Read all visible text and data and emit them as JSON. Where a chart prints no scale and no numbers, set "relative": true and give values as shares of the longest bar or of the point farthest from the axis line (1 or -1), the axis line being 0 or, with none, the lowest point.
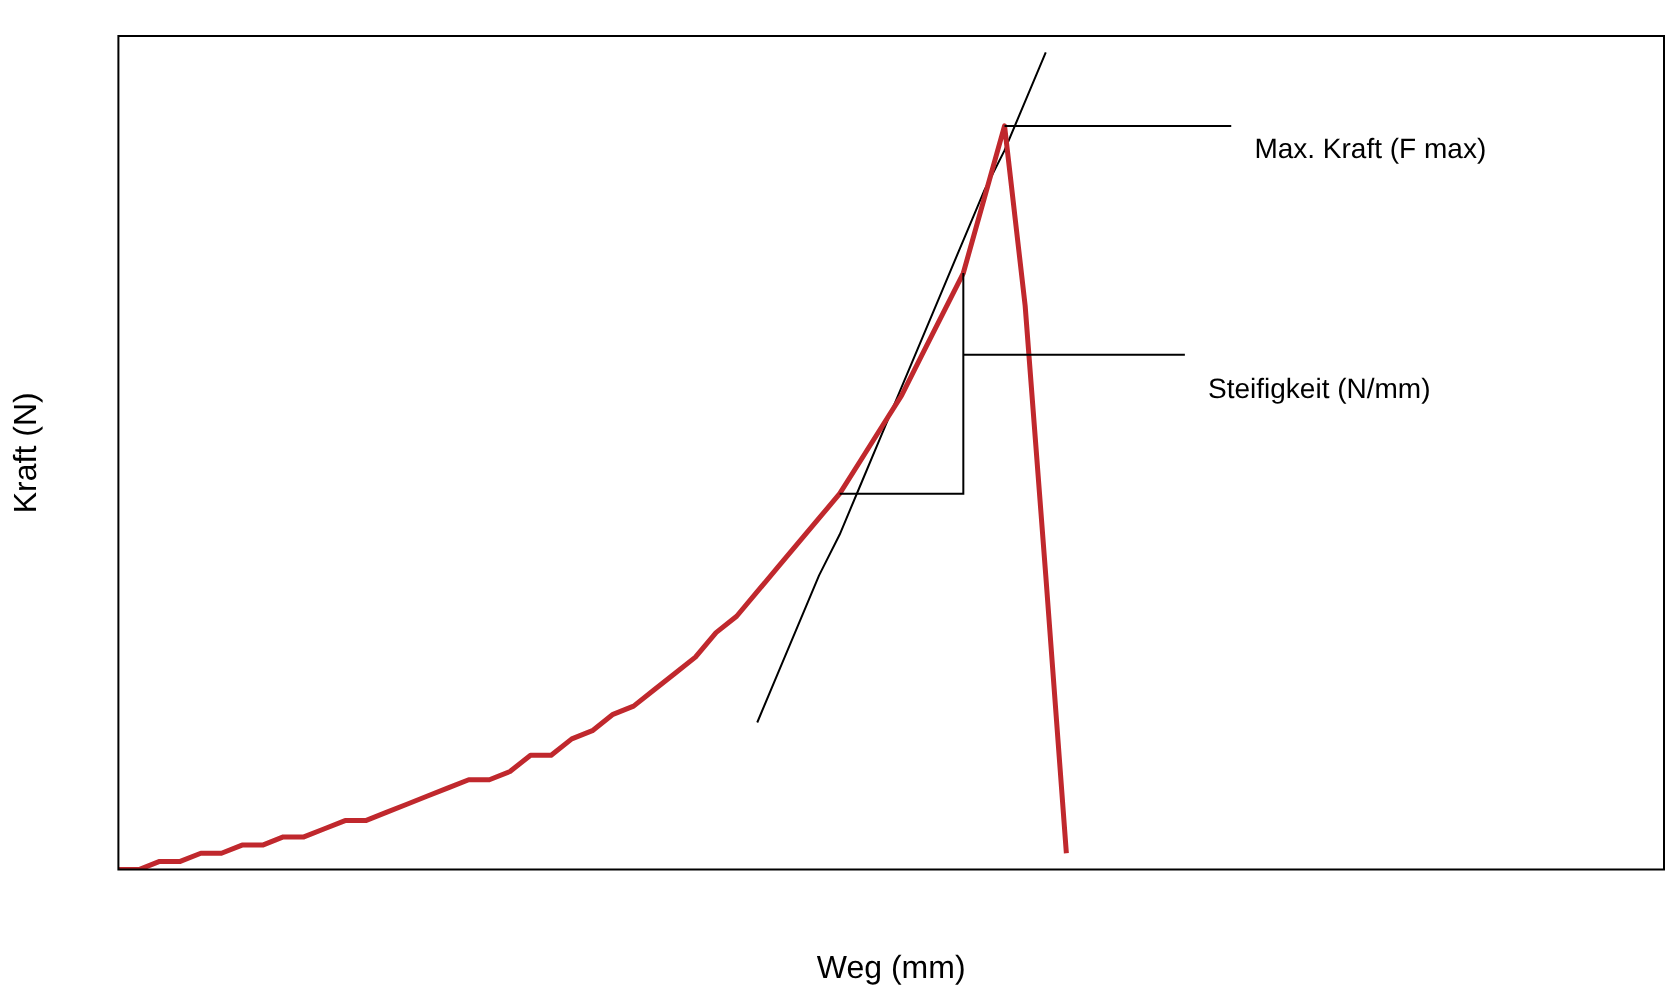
{
  "chart_data": {
    "type": "line",
    "relative": true,
    "xlabel": "Weg (mm)",
    "ylabel": "Kraft (N)",
    "grid": false,
    "legend": false,
    "marker": "none",
    "line_style": "solid",
    "categories": [
      null,
      null,
      null,
      null,
      null,
      null,
      null,
      null,
      null,
      null,
      null,
      null,
      null,
      null,
      null,
      null,
      null,
      null,
      null,
      null,
      null,
      null,
      null,
      null,
      null,
      null,
      null,
      null,
      null,
      null,
      null,
      null,
      null,
      null,
      null,
      null,
      null,
      null,
      null,
      null,
      null,
      null,
      null,
      null,
      null,
      null,
      null,
      null,
      null,
      null,
      null,
      null,
      null,
      null,
      null,
      null,
      null,
      null,
      null,
      null,
      null,
      null,
      null,
      null,
      null,
      null,
      null,
      null,
      null,
      null,
      null,
      null,
      null,
      null,
      null,
      null
    ],
    "series": [
      {
        "color": "#c0282d",
        "values": [
          0,
          0,
          0.01,
          0.01,
          0.02,
          0.02,
          0.03,
          0.03,
          0.04,
          0.04,
          0.05,
          0.06,
          0.06,
          0.07,
          0.08,
          0.09,
          0.1,
          0.11,
          0.11,
          0.12,
          0.14,
          0.14,
          0.16,
          0.17,
          0.19,
          0.2,
          0.22,
          0.24,
          0.26,
          0.29,
          0.31,
          0.34,
          0.37,
          0.4,
          0.43,
          0.46,
          0.5,
          0.54,
          0.58,
          0.63,
          0.68,
          0.73,
          0.82,
          0.91,
          0.69,
          0.36,
          0.02,
          null,
          null,
          null,
          null,
          null,
          null,
          null,
          null,
          null,
          null,
          null,
          null,
          null,
          null,
          null,
          null,
          null,
          null,
          null,
          null,
          null,
          null,
          null,
          null,
          null,
          null,
          null,
          null,
          null
        ]
      },
      {
        "color": "#000000",
        "values": [
          null,
          null,
          null,
          null,
          null,
          null,
          null,
          null,
          null,
          null,
          null,
          null,
          null,
          null,
          null,
          null,
          null,
          null,
          null,
          null,
          null,
          null,
          null,
          null,
          null,
          null,
          null,
          null,
          null,
          null,
          null,
          0.18,
          0.24,
          0.3,
          0.36,
          0.41,
          0.47,
          0.53,
          0.59,
          0.65,
          0.71,
          0.77,
          0.83,
          0.88,
          0.94,
          1.0,
          null,
          null,
          null,
          null,
          null,
          null,
          null,
          null,
          null,
          null,
          null,
          null,
          null,
          null,
          null,
          null,
          null,
          null,
          null,
          null,
          null,
          null,
          null,
          null,
          null,
          null,
          null,
          null,
          null,
          null
        ]
      }
    ],
    "annotations": [
      "Max. Kraft (F max)",
      "Steifigkeit (N/mm)"
    ]
  }
}
